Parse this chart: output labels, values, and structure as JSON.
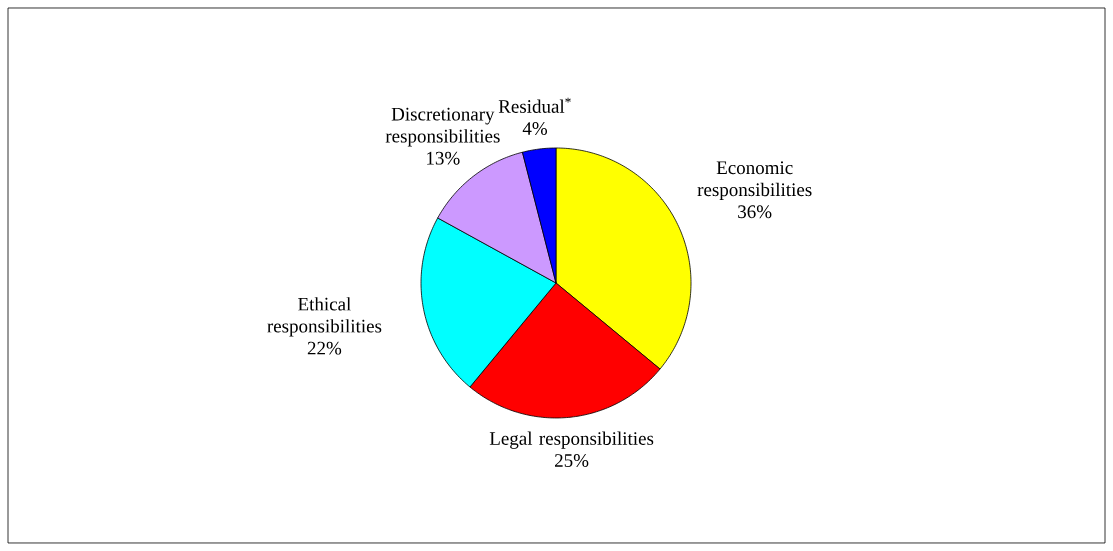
{
  "chart_data": {
    "type": "pie",
    "categories": [
      "Economic responsibilities",
      "Legal responsibilities",
      "Ethical responsibilities",
      "Discretionary responsibilities",
      "Residual$^{*}$"
    ],
    "values": [
      36,
      25,
      22,
      13,
      4
    ],
    "value_labels": [
      "36%",
      "25%",
      "22%",
      "13%",
      "4%"
    ],
    "colors": [
      "#ffff00",
      "#ff0000",
      "#00ffff",
      "#cc99ff",
      "#0000ff"
    ]
  }
}
